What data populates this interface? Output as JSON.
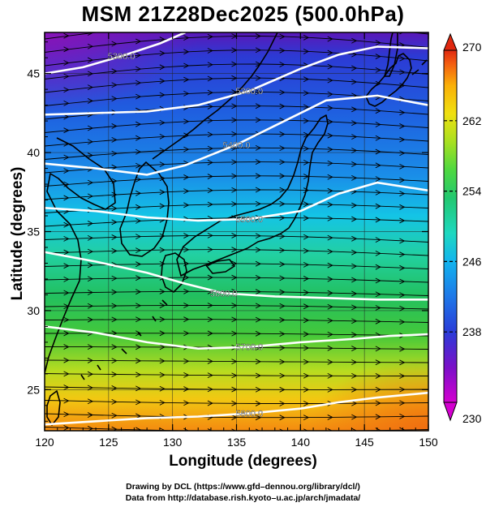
{
  "title": "MSM 21Z28Dec2025 (500.0hPa)",
  "xlabel": "Longitude (degrees)",
  "ylabel": "Latitude  (degrees)",
  "credits": [
    "Drawing by DCL (https://www.gfd–dennou.org/library/dcl/)",
    "Data from http://database.rish.kyoto–u.ac.jp/arch/jmadata/"
  ],
  "chart_data": {
    "type": "heatmap",
    "field": "temperature shading with geopotential height contours and wind streamlines",
    "xlim": [
      120,
      150
    ],
    "ylim": [
      22.4,
      47.6
    ],
    "x_ticks": [
      120,
      125,
      130,
      135,
      140,
      145,
      150
    ],
    "y_ticks": [
      25,
      30,
      35,
      40,
      45
    ],
    "colorbar": {
      "range": [
        230,
        270
      ],
      "ticks": [
        230,
        238,
        246,
        254,
        262,
        270
      ],
      "colors": [
        "#d400d0",
        "#7a10c8",
        "#2a3cd8",
        "#1e78e8",
        "#12b4ee",
        "#1ed8c0",
        "#22c870",
        "#4ed840",
        "#a8e020",
        "#f0e010",
        "#fab008",
        "#f46010",
        "#e02810"
      ]
    },
    "contours": [
      {
        "label": "5300.0",
        "points": [
          [
            120,
            45.0
          ],
          [
            123,
            45.4
          ],
          [
            126,
            46.1
          ],
          [
            129,
            46.9
          ],
          [
            131,
            47.6
          ]
        ]
      },
      {
        "label": "5300.0",
        "points": [
          [
            120,
            42.4
          ],
          [
            124,
            42.5
          ],
          [
            128,
            42.6
          ],
          [
            132,
            43.0
          ],
          [
            136,
            43.9
          ],
          [
            140,
            45.3
          ],
          [
            143,
            46.2
          ],
          [
            146,
            46.7
          ],
          [
            150,
            46.6
          ]
        ]
      },
      {
        "label": "5400.0",
        "points": [
          [
            120,
            39.3
          ],
          [
            124,
            39.0
          ],
          [
            128,
            38.6
          ],
          [
            131,
            39.2
          ],
          [
            135,
            40.5
          ],
          [
            139,
            42.1
          ],
          [
            142,
            43.3
          ],
          [
            146,
            43.6
          ],
          [
            150,
            43.0
          ]
        ]
      },
      {
        "label": "5500.0",
        "points": [
          [
            120,
            36.5
          ],
          [
            124,
            36.3
          ],
          [
            128,
            35.9
          ],
          [
            132,
            35.7
          ],
          [
            136,
            35.8
          ],
          [
            140,
            36.3
          ],
          [
            143,
            37.4
          ],
          [
            146,
            38.1
          ],
          [
            150,
            37.6
          ]
        ]
      },
      {
        "label": "5600.0",
        "points": [
          [
            120,
            33.7
          ],
          [
            124,
            33.1
          ],
          [
            128,
            32.4
          ],
          [
            131,
            31.7
          ],
          [
            134,
            31.1
          ],
          [
            138,
            30.9
          ],
          [
            142,
            30.8
          ],
          [
            146,
            30.7
          ],
          [
            150,
            30.7
          ]
        ]
      },
      {
        "label": "5700.0",
        "points": [
          [
            120,
            29.0
          ],
          [
            124,
            28.6
          ],
          [
            128,
            28.0
          ],
          [
            132,
            27.6
          ],
          [
            136,
            27.7
          ],
          [
            140,
            28.0
          ],
          [
            144,
            28.2
          ],
          [
            147,
            28.4
          ],
          [
            150,
            28.5
          ]
        ]
      },
      {
        "label": "5800.0",
        "points": [
          [
            120,
            22.8
          ],
          [
            124,
            23.0
          ],
          [
            128,
            23.2
          ],
          [
            132,
            23.3
          ],
          [
            136,
            23.5
          ],
          [
            140,
            23.8
          ],
          [
            143,
            24.2
          ],
          [
            146,
            24.5
          ],
          [
            150,
            24.8
          ]
        ]
      }
    ]
  }
}
